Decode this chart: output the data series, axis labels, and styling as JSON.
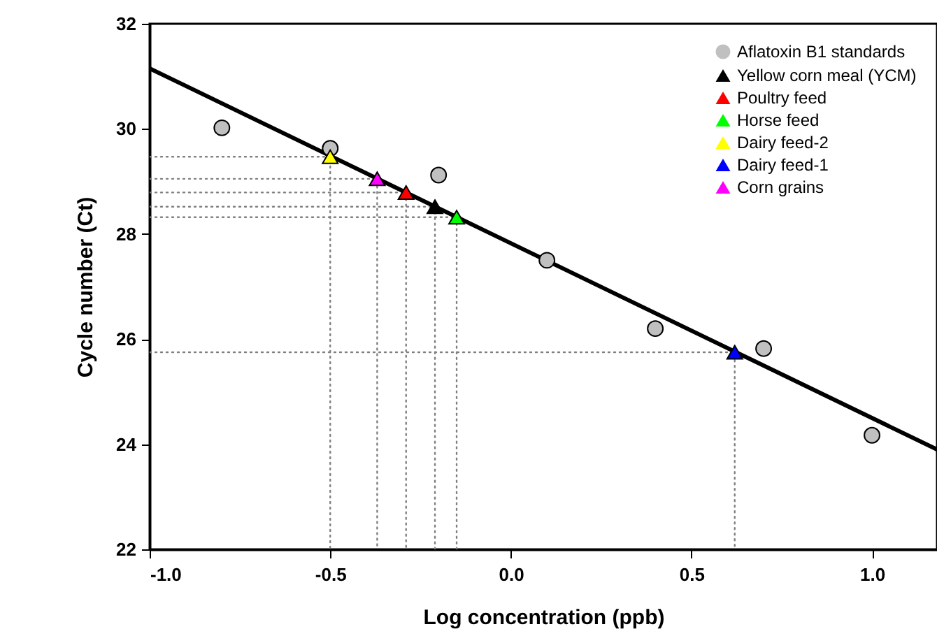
{
  "chart_data": {
    "type": "scatter",
    "xlabel": "Log concentration (ppb)",
    "ylabel": "Cycle number (Ct)",
    "xlim": [
      -1,
      1.18
    ],
    "xticks": [
      {
        "value": -1,
        "label": "-1.0"
      },
      {
        "value": -0.5,
        "label": "-0.5"
      },
      {
        "value": 0,
        "label": "0.0"
      },
      {
        "value": 0.5,
        "label": "0.5"
      },
      {
        "value": 1,
        "label": "1.0"
      }
    ],
    "ylim": [
      22,
      32
    ],
    "yticks": [
      22,
      24,
      26,
      28,
      30,
      32
    ],
    "grid": false,
    "legend": "top right",
    "series": [
      {
        "name": "Aflatoxin B1 standards",
        "type": "scatter",
        "marker": "circle",
        "color": "#c0c0c0",
        "x": [
          -0.8,
          -0.5,
          -0.2,
          0.1,
          0.4,
          0.7,
          1.0
        ],
        "values": [
          30.02,
          29.63,
          29.12,
          27.5,
          26.2,
          25.82,
          24.17
        ]
      },
      {
        "name": "Yellow corn meal (YCM)",
        "type": "scatter",
        "marker": "triangle",
        "color": "#000000",
        "x": [
          -0.21
        ],
        "values": [
          28.52
        ]
      },
      {
        "name": "Poultry feed",
        "type": "scatter",
        "marker": "triangle",
        "color": "#ff0000",
        "x": [
          -0.29
        ],
        "values": [
          28.79
        ]
      },
      {
        "name": "Horse feed",
        "type": "scatter",
        "marker": "triangle",
        "color": "#00ff00",
        "x": [
          -0.15
        ],
        "values": [
          28.32
        ]
      },
      {
        "name": "Dairy feed-2",
        "type": "scatter",
        "marker": "triangle",
        "color": "#ffff00",
        "x": [
          -0.5
        ],
        "values": [
          29.47
        ]
      },
      {
        "name": "Dairy feed-1",
        "type": "scatter",
        "marker": "triangle",
        "color": "#0000ff",
        "x": [
          0.62
        ],
        "values": [
          25.75
        ]
      },
      {
        "name": "Corn grains",
        "type": "scatter",
        "marker": "triangle",
        "color": "#ff00ff",
        "x": [
          -0.37
        ],
        "values": [
          29.05
        ]
      },
      {
        "type": "line",
        "line_style": "dotted",
        "color": "#808080",
        "x": [
          -1,
          -0.5,
          -0.5
        ],
        "values": [
          29.47,
          29.47,
          22
        ]
      },
      {
        "type": "line",
        "line_style": "dotted",
        "color": "#808080",
        "x": [
          -1,
          -0.37,
          -0.37
        ],
        "values": [
          29.05,
          29.05,
          22
        ]
      },
      {
        "type": "line",
        "line_style": "dotted",
        "color": "#808080",
        "x": [
          -1,
          -0.29,
          -0.29
        ],
        "values": [
          28.79,
          28.79,
          22
        ]
      },
      {
        "type": "line",
        "line_style": "dotted",
        "color": "#808080",
        "x": [
          -1,
          -0.21,
          -0.21
        ],
        "values": [
          28.52,
          28.52,
          22
        ]
      },
      {
        "type": "line",
        "line_style": "dotted",
        "color": "#808080",
        "x": [
          -1,
          -0.15,
          -0.15
        ],
        "values": [
          28.32,
          28.32,
          22
        ]
      },
      {
        "type": "line",
        "line_style": "dotted",
        "color": "#808080",
        "x": [
          -1,
          0.62,
          0.62
        ],
        "values": [
          25.75,
          25.75,
          22
        ]
      },
      {
        "type": "line",
        "line_style": "solid",
        "color": "#000000",
        "x": [
          -1,
          1.18
        ],
        "values": [
          31.15,
          23.9
        ]
      }
    ]
  }
}
